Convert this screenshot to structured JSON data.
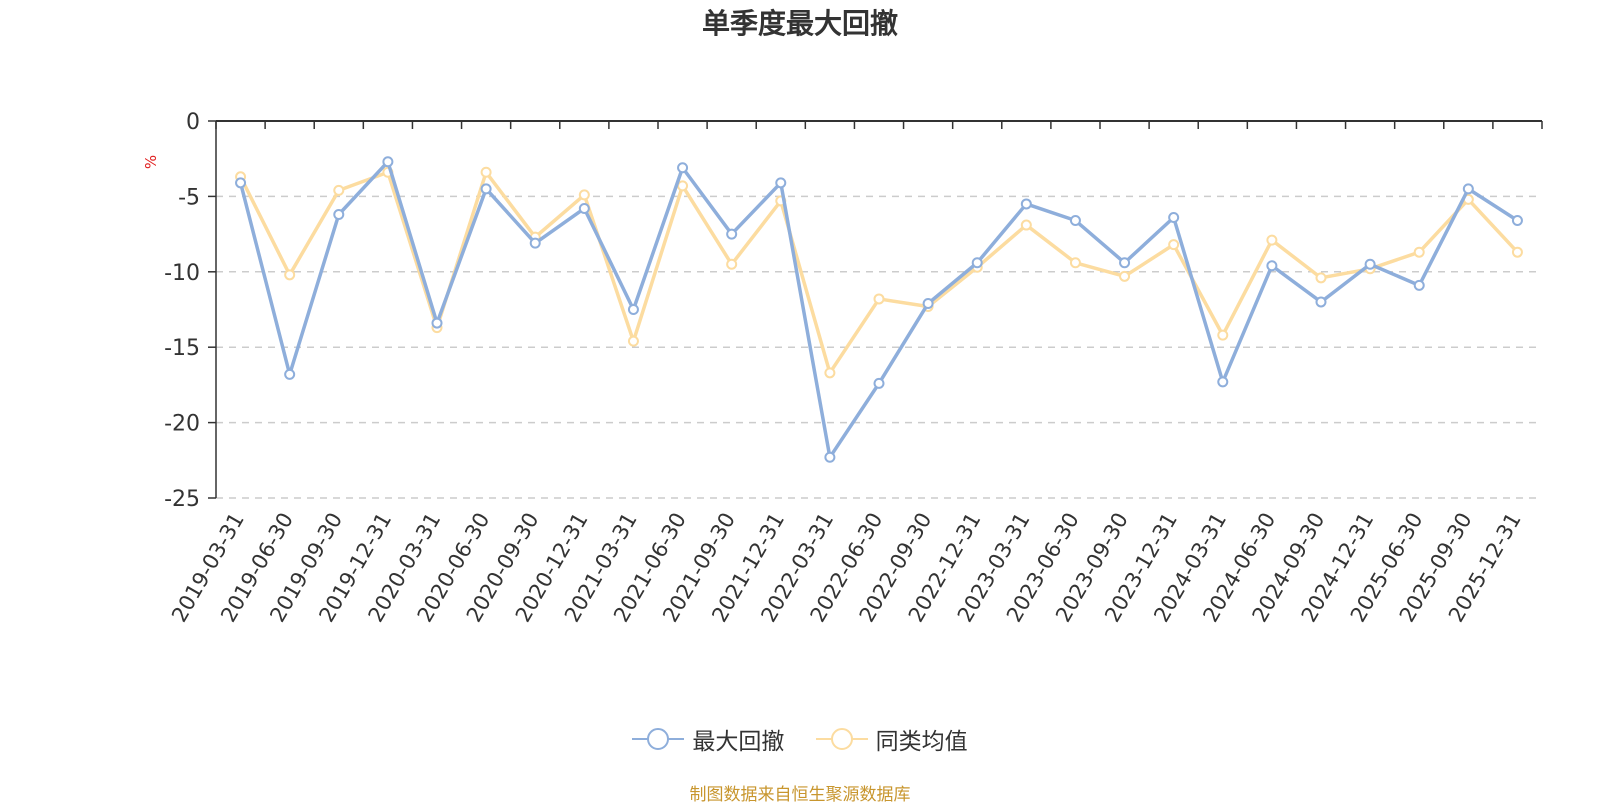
{
  "chart_data": {
    "type": "line",
    "title": "单季度最大回撤",
    "ylabel": "%",
    "ylim": [
      -25,
      0
    ],
    "yticks": [
      0,
      -5,
      -10,
      -15,
      -20,
      -25
    ],
    "grid": true,
    "legend_position": "bottom",
    "categories": [
      "2019-03-31",
      "2019-06-30",
      "2019-09-30",
      "2019-12-31",
      "2020-03-31",
      "2020-06-30",
      "2020-09-30",
      "2020-12-31",
      "2021-03-31",
      "2021-06-30",
      "2021-09-30",
      "2021-12-31",
      "2022-03-31",
      "2022-06-30",
      "2022-09-30",
      "2022-12-31",
      "2023-03-31",
      "2023-06-30",
      "2023-09-30",
      "2023-12-31",
      "2024-03-31",
      "2024-06-30",
      "2024-09-30",
      "2024-12-31",
      "2025-06-30",
      "2025-09-30",
      "2025-12-31"
    ],
    "series": [
      {
        "name": "最大回撤",
        "color": "#8eaedb",
        "values": [
          -4.1,
          -16.8,
          -6.2,
          -2.7,
          -13.4,
          -4.5,
          -8.1,
          -5.8,
          -12.5,
          -3.1,
          -7.5,
          -4.1,
          -22.3,
          -17.4,
          -12.1,
          -9.4,
          -5.5,
          -6.6,
          -9.4,
          -6.4,
          -17.3,
          -9.6,
          -12.0,
          -9.5,
          -10.9,
          -4.5,
          -6.6
        ]
      },
      {
        "name": "同类均值",
        "color": "#fcdca0",
        "values": [
          -3.7,
          -10.2,
          -4.6,
          -3.4,
          -13.7,
          -3.4,
          -7.7,
          -4.9,
          -14.6,
          -4.3,
          -9.5,
          -5.3,
          -16.7,
          -11.8,
          -12.3,
          -9.7,
          -6.9,
          -9.4,
          -10.3,
          -8.2,
          -14.2,
          -7.9,
          -10.4,
          -9.8,
          -8.7,
          -5.2,
          -8.7
        ]
      }
    ]
  },
  "source_text": "制图数据来自恒生聚源数据库"
}
